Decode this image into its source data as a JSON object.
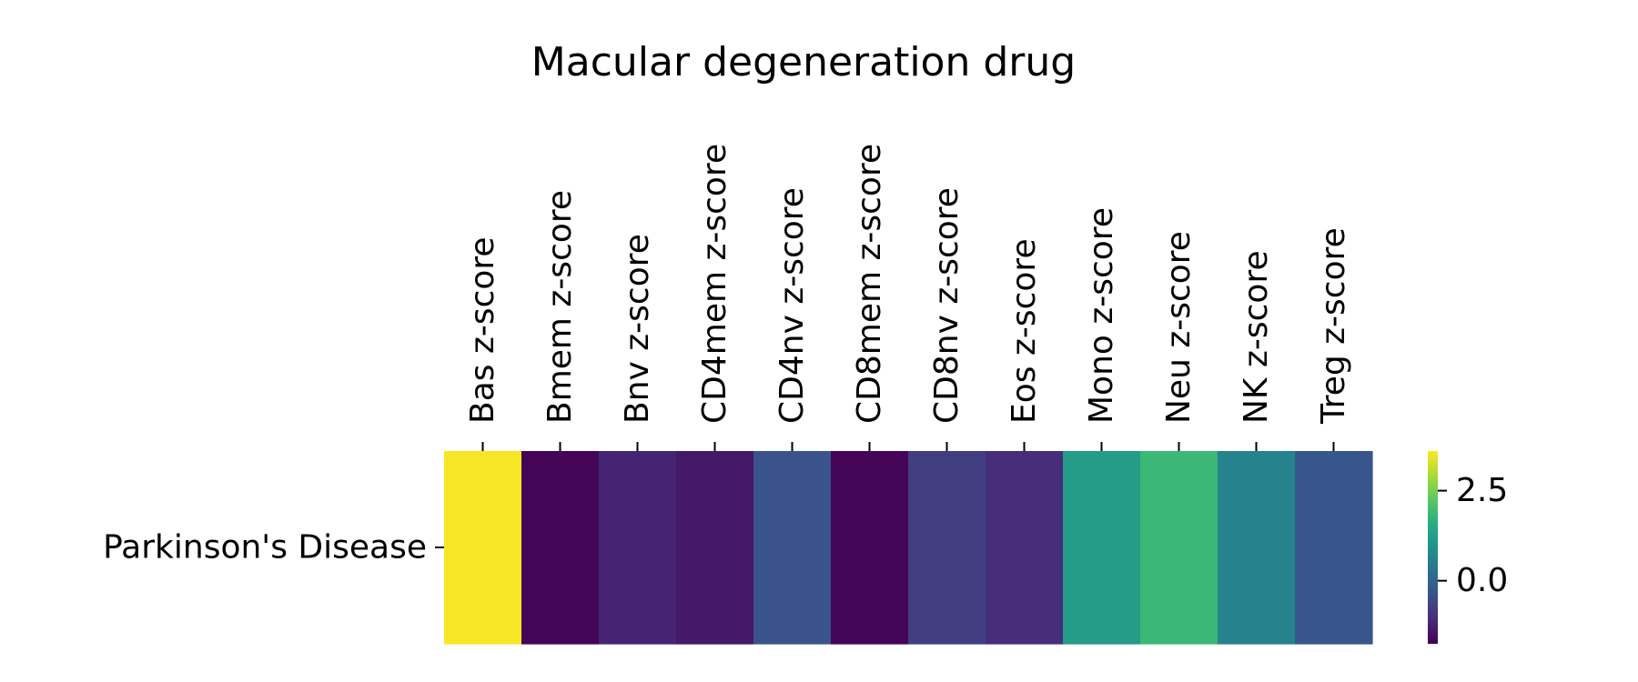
{
  "chart_data": {
    "type": "heatmap",
    "title": "Macular degeneration drug",
    "rows": [
      "Parkinson's Disease"
    ],
    "columns": [
      "Bas z-score",
      "Bmem z-score",
      "Bnv z-score",
      "CD4mem z-score",
      "CD4nv z-score",
      "CD8mem z-score",
      "CD8nv z-score",
      "Eos z-score",
      "Mono z-score",
      "Neu z-score",
      "NK z-score",
      "Treg z-score"
    ],
    "values": [
      [
        3.55,
        -1.7,
        -1.2,
        -1.4,
        -0.35,
        -1.7,
        -0.75,
        -1.05,
        1.2,
        1.85,
        0.65,
        -0.3
      ]
    ],
    "colormap": "viridis",
    "vmin": -1.75,
    "vmax": 3.6,
    "colorbar": {
      "ticks": [
        2.5,
        0.0
      ],
      "tick_labels": [
        "2.5",
        "0.0"
      ]
    },
    "xaxis_position": "top",
    "grid": false
  }
}
